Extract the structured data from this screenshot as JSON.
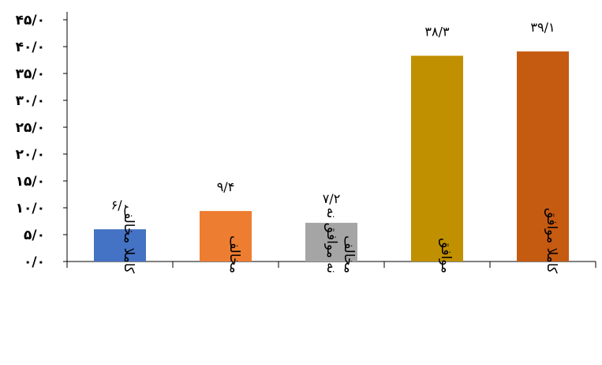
{
  "chart_data": {
    "type": "bar",
    "categories": [
      "کاملا مخالف",
      "مخالف",
      "نه موافق نه مخالف",
      "موافق",
      "کاملا موافق"
    ],
    "category_lines": [
      [
        "کاملا مخالف"
      ],
      [
        "مخالف"
      ],
      [
        "نه موافق نه",
        "مخالف"
      ],
      [
        "موافق"
      ],
      [
        "کاملا موافق"
      ]
    ],
    "values": [
      6.0,
      9.4,
      7.2,
      38.3,
      39.1
    ],
    "data_labels": [
      "۶/۰",
      "۹/۴",
      "۷/۲",
      "۳۸/۳",
      "۳۹/۱"
    ],
    "colors": [
      "#4472C4",
      "#ED7D31",
      "#A5A5A5",
      "#C09000",
      "#C55A11"
    ],
    "ylim": [
      0,
      45
    ],
    "yticks": [
      0,
      5,
      10,
      15,
      20,
      25,
      30,
      35,
      40,
      45
    ],
    "ytick_labels": [
      "۰/۰",
      "۵/۰",
      "۱۰/۰",
      "۱۵/۰",
      "۲۰/۰",
      "۲۵/۰",
      "۳۰/۰",
      "۳۵/۰",
      "۴۰/۰",
      "۴۵/۰"
    ],
    "grid": false,
    "title": "",
    "xlabel": "",
    "ylabel": ""
  }
}
